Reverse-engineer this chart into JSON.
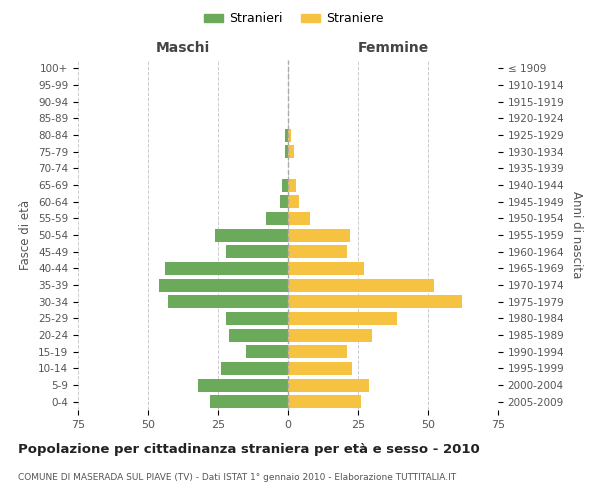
{
  "age_groups": [
    "0-4",
    "5-9",
    "10-14",
    "15-19",
    "20-24",
    "25-29",
    "30-34",
    "35-39",
    "40-44",
    "45-49",
    "50-54",
    "55-59",
    "60-64",
    "65-69",
    "70-74",
    "75-79",
    "80-84",
    "85-89",
    "90-94",
    "95-99",
    "100+"
  ],
  "birth_years": [
    "2005-2009",
    "2000-2004",
    "1995-1999",
    "1990-1994",
    "1985-1989",
    "1980-1984",
    "1975-1979",
    "1970-1974",
    "1965-1969",
    "1960-1964",
    "1955-1959",
    "1950-1954",
    "1945-1949",
    "1940-1944",
    "1935-1939",
    "1930-1934",
    "1925-1929",
    "1920-1924",
    "1915-1919",
    "1910-1914",
    "≤ 1909"
  ],
  "maschi": [
    28,
    32,
    24,
    15,
    21,
    22,
    43,
    46,
    44,
    22,
    26,
    8,
    3,
    2,
    0,
    1,
    1,
    0,
    0,
    0,
    0
  ],
  "femmine": [
    26,
    29,
    23,
    21,
    30,
    39,
    62,
    52,
    27,
    21,
    22,
    8,
    4,
    3,
    0,
    2,
    1,
    0,
    0,
    0,
    0
  ],
  "maschi_color": "#6aaa5a",
  "femmine_color": "#f5c242",
  "background_color": "#ffffff",
  "grid_color": "#cccccc",
  "title": "Popolazione per cittadinanza straniera per età e sesso - 2010",
  "subtitle": "COMUNE DI MASERADA SUL PIAVE (TV) - Dati ISTAT 1° gennaio 2010 - Elaborazione TUTTITALIA.IT",
  "xlabel_left": "Maschi",
  "xlabel_right": "Femmine",
  "ylabel_left": "Fasce di età",
  "ylabel_right": "Anni di nascita",
  "xlim": 75,
  "legend_stranieri": "Stranieri",
  "legend_straniere": "Straniere"
}
